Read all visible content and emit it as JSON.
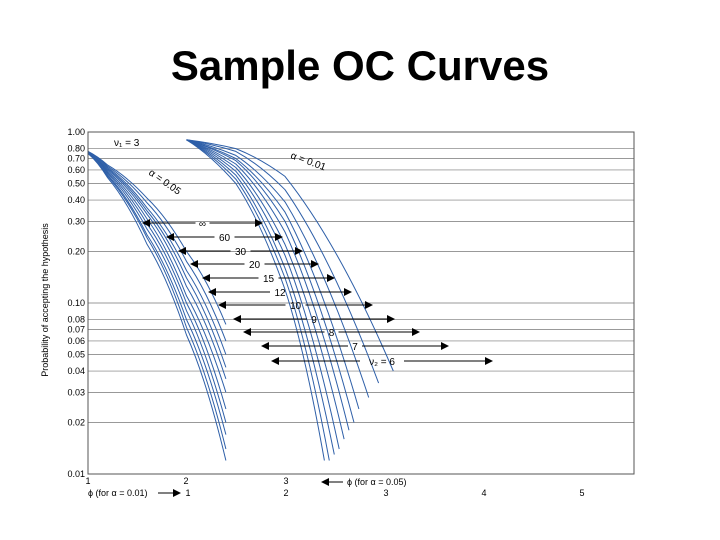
{
  "slide_title": "Sample OC Curves",
  "chart_data": {
    "type": "line",
    "title": "",
    "ylabel": "Probability of accepting the hypothesis",
    "ylim": [
      0.01,
      1.0
    ],
    "yscale": "log",
    "y_ticks": [
      "1.00",
      "0.80",
      "0.70",
      "0.60",
      "0.50",
      "0.40",
      "0.30",
      "0.20",
      "0.10",
      "0.08",
      "0.07",
      "0.06",
      "0.05",
      "0.04",
      "0.03",
      "0.02",
      "0.01"
    ],
    "x_axis_alpha_005": {
      "label": "ϕ (for α = 0.05)",
      "ticks": [
        "1",
        "2",
        "3"
      ]
    },
    "x_axis_alpha_001": {
      "label": "ϕ (for α = 0.01)",
      "ticks": [
        "1",
        "2",
        "3",
        "4",
        "5"
      ]
    },
    "annotations": {
      "nu1": "ν₁ = 3",
      "alpha_005": "α = 0.05",
      "alpha_001": "α = 0.01",
      "nu2_prefix": "ν₂ = "
    },
    "nu2_values": [
      "∞",
      "60",
      "30",
      "20",
      "15",
      "12",
      "10",
      "9",
      "8",
      "7",
      "6"
    ],
    "grid": true,
    "series_alpha_005": [
      {
        "nu2": "∞",
        "points": [
          [
            1.0,
            0.75
          ],
          [
            1.2,
            0.54
          ],
          [
            1.6,
            0.22
          ],
          [
            2.0,
            0.065
          ],
          [
            2.4,
            0.012
          ]
        ]
      },
      {
        "nu2": "60",
        "points": [
          [
            1.0,
            0.75
          ],
          [
            1.2,
            0.55
          ],
          [
            1.6,
            0.24
          ],
          [
            2.0,
            0.072
          ],
          [
            2.4,
            0.014
          ]
        ]
      },
      {
        "nu2": "30",
        "points": [
          [
            1.0,
            0.75
          ],
          [
            1.2,
            0.56
          ],
          [
            1.6,
            0.25
          ],
          [
            2.0,
            0.08
          ],
          [
            2.4,
            0.017
          ]
        ]
      },
      {
        "nu2": "20",
        "points": [
          [
            1.0,
            0.76
          ],
          [
            1.2,
            0.57
          ],
          [
            1.6,
            0.27
          ],
          [
            2.0,
            0.09
          ],
          [
            2.4,
            0.02
          ]
        ]
      },
      {
        "nu2": "15",
        "points": [
          [
            1.0,
            0.76
          ],
          [
            1.2,
            0.58
          ],
          [
            1.6,
            0.29
          ],
          [
            2.0,
            0.1
          ],
          [
            2.4,
            0.024
          ]
        ]
      },
      {
        "nu2": "12",
        "points": [
          [
            1.0,
            0.76
          ],
          [
            1.2,
            0.59
          ],
          [
            1.6,
            0.31
          ],
          [
            2.0,
            0.11
          ],
          [
            2.4,
            0.03
          ]
        ]
      },
      {
        "nu2": "10",
        "points": [
          [
            1.0,
            0.76
          ],
          [
            1.2,
            0.6
          ],
          [
            1.6,
            0.33
          ],
          [
            2.0,
            0.125
          ],
          [
            2.4,
            0.036
          ]
        ]
      },
      {
        "nu2": "9",
        "points": [
          [
            1.0,
            0.76
          ],
          [
            1.2,
            0.61
          ],
          [
            1.6,
            0.345
          ],
          [
            2.0,
            0.14
          ],
          [
            2.4,
            0.042
          ]
        ]
      },
      {
        "nu2": "8",
        "points": [
          [
            1.0,
            0.77
          ],
          [
            1.2,
            0.62
          ],
          [
            1.6,
            0.36
          ],
          [
            2.0,
            0.155
          ],
          [
            2.4,
            0.05
          ]
        ]
      },
      {
        "nu2": "7",
        "points": [
          [
            1.0,
            0.77
          ],
          [
            1.2,
            0.63
          ],
          [
            1.6,
            0.385
          ],
          [
            2.0,
            0.175
          ],
          [
            2.4,
            0.06
          ]
        ]
      },
      {
        "nu2": "6",
        "points": [
          [
            1.0,
            0.77
          ],
          [
            1.2,
            0.64
          ],
          [
            1.6,
            0.41
          ],
          [
            2.0,
            0.2
          ],
          [
            2.4,
            0.075
          ]
        ]
      }
    ],
    "series_alpha_001": [
      {
        "nu2": "∞",
        "points": [
          [
            2.0,
            0.9
          ],
          [
            2.5,
            0.5
          ],
          [
            3.0,
            0.12
          ],
          [
            3.4,
            0.012
          ]
        ]
      },
      {
        "nu2": "60",
        "points": [
          [
            2.0,
            0.9
          ],
          [
            2.5,
            0.53
          ],
          [
            3.0,
            0.14
          ],
          [
            3.45,
            0.012
          ]
        ]
      },
      {
        "nu2": "30",
        "points": [
          [
            2.0,
            0.9
          ],
          [
            2.5,
            0.56
          ],
          [
            3.0,
            0.16
          ],
          [
            3.5,
            0.013
          ]
        ]
      },
      {
        "nu2": "20",
        "points": [
          [
            2.0,
            0.9
          ],
          [
            2.5,
            0.59
          ],
          [
            3.0,
            0.19
          ],
          [
            3.55,
            0.014
          ]
        ]
      },
      {
        "nu2": "15",
        "points": [
          [
            2.0,
            0.9
          ],
          [
            2.5,
            0.62
          ],
          [
            3.0,
            0.22
          ],
          [
            3.6,
            0.016
          ]
        ]
      },
      {
        "nu2": "12",
        "points": [
          [
            2.0,
            0.9
          ],
          [
            2.5,
            0.65
          ],
          [
            3.0,
            0.26
          ],
          [
            3.65,
            0.018
          ]
        ]
      },
      {
        "nu2": "10",
        "points": [
          [
            2.0,
            0.9
          ],
          [
            2.5,
            0.68
          ],
          [
            3.0,
            0.3
          ],
          [
            3.7,
            0.02
          ]
        ]
      },
      {
        "nu2": "9",
        "points": [
          [
            2.0,
            0.9
          ],
          [
            2.5,
            0.7
          ],
          [
            3.0,
            0.34
          ],
          [
            3.75,
            0.024
          ]
        ]
      },
      {
        "nu2": "8",
        "points": [
          [
            2.0,
            0.9
          ],
          [
            2.5,
            0.73
          ],
          [
            3.0,
            0.39
          ],
          [
            3.85,
            0.028
          ]
        ]
      },
      {
        "nu2": "7",
        "points": [
          [
            2.0,
            0.9
          ],
          [
            2.5,
            0.77
          ],
          [
            3.0,
            0.46
          ],
          [
            3.95,
            0.034
          ]
        ]
      },
      {
        "nu2": "6",
        "points": [
          [
            2.0,
            0.9
          ],
          [
            2.5,
            0.8
          ],
          [
            3.0,
            0.55
          ],
          [
            4.1,
            0.04
          ]
        ]
      }
    ]
  }
}
